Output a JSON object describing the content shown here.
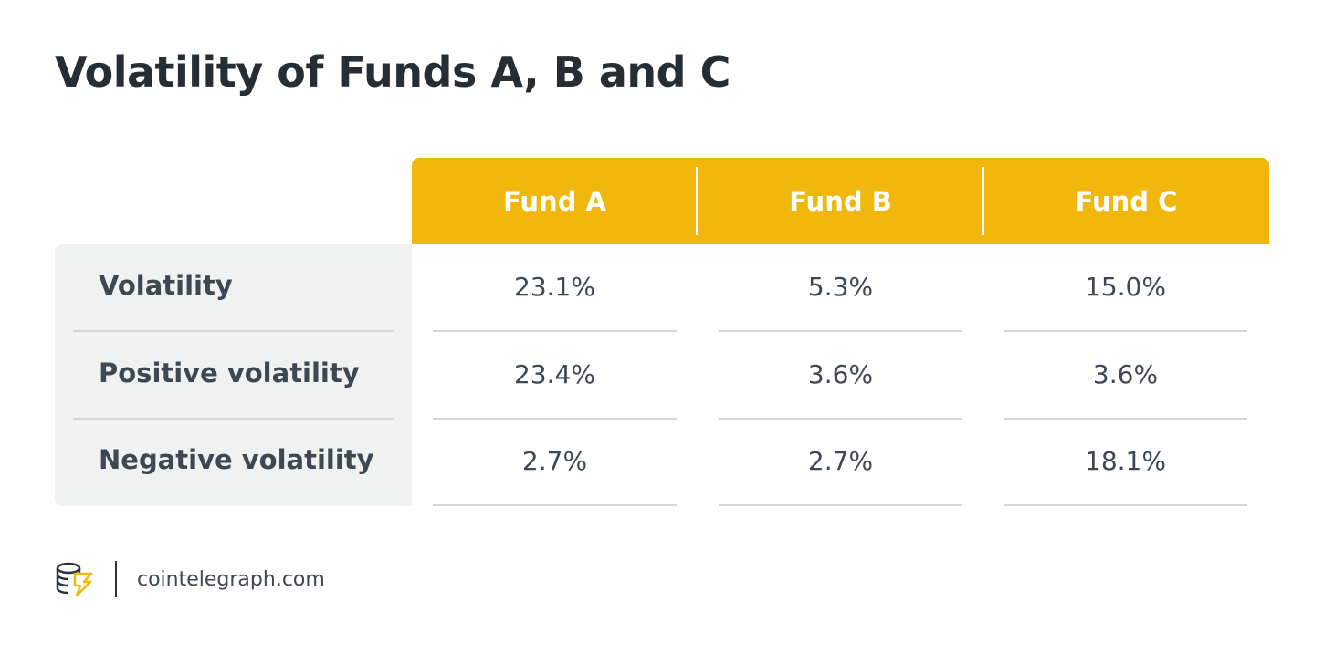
{
  "header": {
    "title": "Volatility of Funds A, B and C"
  },
  "table": {
    "columns": [
      "Fund A",
      "Fund B",
      "Fund C"
    ],
    "rows": [
      [
        "Volatility",
        "23.1%",
        "5.3%",
        "15.0%"
      ],
      [
        "Positive volatility",
        "23.4%",
        "3.6%",
        "3.6%"
      ],
      [
        "Negative volatility",
        "2.7%",
        "2.7%",
        "18.1%"
      ]
    ]
  },
  "footer": {
    "source": "cointelegraph.com"
  }
}
